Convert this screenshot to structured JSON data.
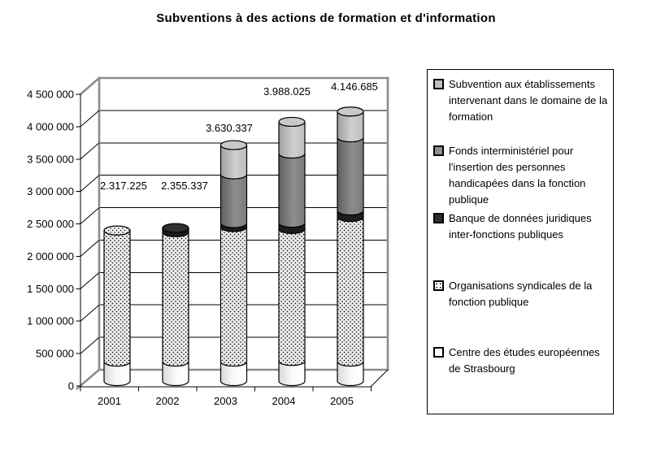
{
  "title": "Subventions à des actions de formation et d'information",
  "colors": {
    "lightgray": "#c0c0c0",
    "gray": "#7f7f7f",
    "black": "#1c1c1c",
    "white": "#f6f6f6",
    "dots_bg": "#ededed",
    "frame_gray": "#8c8c8c"
  },
  "chart_data": {
    "type": "bar",
    "subtype": "stacked-cylinder-3d",
    "title": "Subventions à des actions de formation et d'information",
    "categories": [
      "2001",
      "2002",
      "2003",
      "2004",
      "2005"
    ],
    "series": [
      {
        "key": "centre",
        "swatch": "white",
        "name": "Centre des études européennes de Strasbourg",
        "values": [
          300000,
          300000,
          300000,
          310000,
          300000
        ]
      },
      {
        "key": "organisations",
        "swatch": "dots",
        "name": "Organisations syndicales de la fonction publique",
        "values": [
          2017225,
          1990337,
          2070000,
          2030000,
          2225000
        ]
      },
      {
        "key": "banque",
        "swatch": "black",
        "name": "Banque de données juridiques inter-fonctions publiques",
        "values": [
          0,
          65000,
          60000,
          95000,
          100000
        ]
      },
      {
        "key": "fonds",
        "swatch": "gray",
        "name": "Fonds interministériel pour l'insertion des personnes handicapées dans la fonction publique",
        "values": [
          0,
          0,
          750000,
          1065000,
          1125000
        ]
      },
      {
        "key": "subvention",
        "swatch": "lightgray",
        "name": "Subvention aux établissements intervenant dans le domaine de la formation",
        "values": [
          0,
          0,
          450337,
          488025,
          396685
        ]
      }
    ],
    "totals_labels": [
      "2.317.225",
      "2.355.337",
      "3.630.337",
      "3.988.025",
      "4.146.685"
    ],
    "ytick_labels": [
      "0",
      "500 000",
      "1 000 000",
      "1 500 000",
      "2 000 000",
      "2 500 000",
      "3 000 000",
      "3 500 000",
      "4 000 000",
      "4 500 000"
    ],
    "ylim": [
      0,
      4500000
    ],
    "grid": true,
    "legend_position": "right"
  }
}
